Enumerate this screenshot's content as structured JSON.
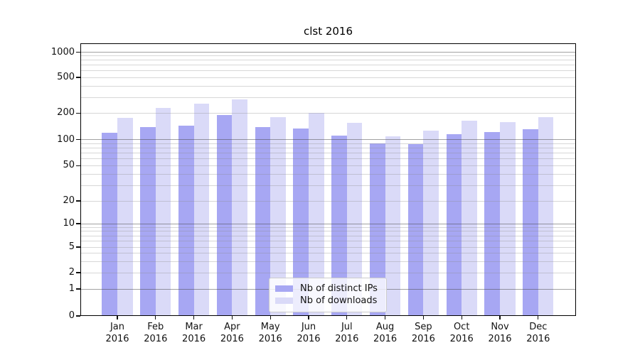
{
  "title": "clst 2016",
  "chart_data": {
    "type": "bar",
    "title": "clst 2016",
    "x_months": [
      "Jan",
      "Feb",
      "Mar",
      "Apr",
      "May",
      "Jun",
      "Jul",
      "Aug",
      "Sep",
      "Oct",
      "Nov",
      "Dec"
    ],
    "x_year": "2016",
    "categories": [
      "Jan 2016",
      "Feb 2016",
      "Mar 2016",
      "Apr 2016",
      "May 2016",
      "Jun 2016",
      "Jul 2016",
      "Aug 2016",
      "Sep 2016",
      "Oct 2016",
      "Nov 2016",
      "Dec 2016"
    ],
    "series": [
      {
        "name": "Nb of distinct IPs",
        "color": "#a7a7f3",
        "values": [
          120,
          138,
          144,
          192,
          139,
          134,
          112,
          91,
          89,
          115,
          123,
          132
        ]
      },
      {
        "name": "Nb of downloads",
        "color": "#dadaf8",
        "values": [
          178,
          228,
          255,
          285,
          180,
          202,
          154,
          110,
          127,
          164,
          159,
          180
        ]
      }
    ],
    "yscale": "symlog",
    "yticks": [
      0,
      1,
      2,
      5,
      10,
      20,
      50,
      100,
      200,
      500,
      1000
    ],
    "ylim": [
      0,
      1270
    ],
    "grid": true,
    "legend_position": "lower center"
  },
  "colors": {
    "grid_major": "rgba(70,70,70,0.5)",
    "grid_minor": "rgba(140,140,140,0.35)",
    "axis": "#000000",
    "text": "#111111",
    "background": "#ffffff"
  }
}
